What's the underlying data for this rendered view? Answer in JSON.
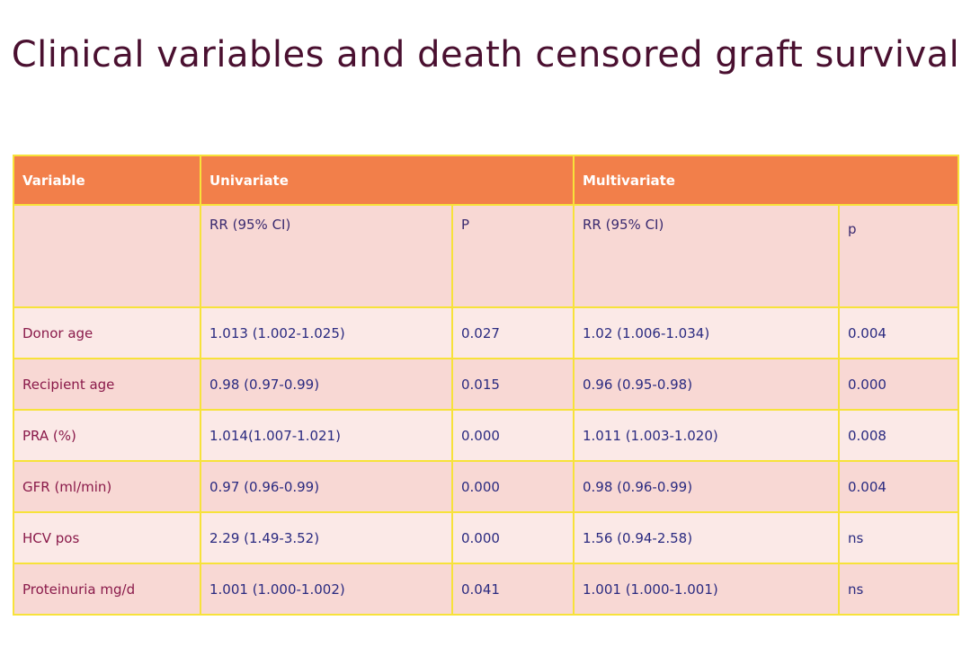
{
  "title": "Clinical variables and death censored graft survival",
  "header": {
    "variable": "Variable",
    "univariate": "Univariate",
    "multivariate": "Multivariate"
  },
  "subheader": {
    "uni_rr": "RR (95% CI)",
    "uni_p": "P",
    "multi_rr": "RR (95% CI)",
    "multi_p": "p"
  },
  "rows": [
    {
      "variable": "Donor age",
      "uni_rr": "1.013 (1.002-1.025)",
      "uni_p": "0.027",
      "multi_rr": "1.02 (1.006-1.034)",
      "multi_p": "0.004"
    },
    {
      "variable": "Recipient age",
      "uni_rr": "0.98 (0.97-0.99)",
      "uni_p": "0.015",
      "multi_rr": "0.96 (0.95-0.98)",
      "multi_p": "0.000"
    },
    {
      "variable": "PRA (%)",
      "uni_rr": "1.014(1.007-1.021)",
      "uni_p": "0.000",
      "multi_rr": "1.011 (1.003-1.020)",
      "multi_p": "0.008"
    },
    {
      "variable": "GFR (ml/min)",
      "uni_rr": "0.97 (0.96-0.99)",
      "uni_p": "0.000",
      "multi_rr": "0.98 (0.96-0.99)",
      "multi_p": "0.004"
    },
    {
      "variable": "HCV pos",
      "uni_rr": "2.29 (1.49-3.52)",
      "uni_p": "0.000",
      "multi_rr": "1.56 (0.94-2.58)",
      "multi_p": "ns"
    },
    {
      "variable": "Proteinuria mg/d",
      "uni_rr": "1.001 (1.000-1.002)",
      "uni_p": "0.041",
      "multi_rr": "1.001 (1.000-1.001)",
      "multi_p": "ns"
    }
  ],
  "colors": {
    "header_bg": "#f27f4a",
    "row_odd_bg": "#fbe9e7",
    "row_even_bg": "#f8d8d4",
    "border": "#f7e23a",
    "title_text": "#4a1030"
  }
}
